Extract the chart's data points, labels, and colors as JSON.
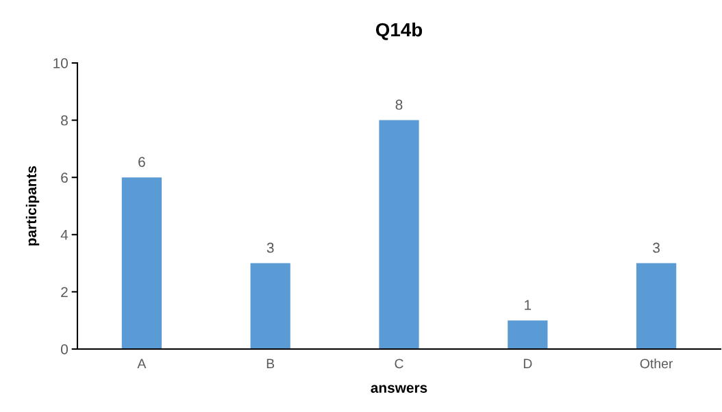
{
  "chart_data": {
    "type": "bar",
    "title": "Q14b",
    "xlabel": "answers",
    "ylabel": "participants",
    "categories": [
      "A",
      "B",
      "C",
      "D",
      "Other"
    ],
    "values": [
      6,
      3,
      8,
      1,
      3
    ],
    "color": "#5b9bd5",
    "ylim": [
      0,
      10
    ],
    "yticks": [
      0,
      2,
      4,
      6,
      8,
      10
    ],
    "grid": false,
    "data_labels": true,
    "legend": false
  }
}
